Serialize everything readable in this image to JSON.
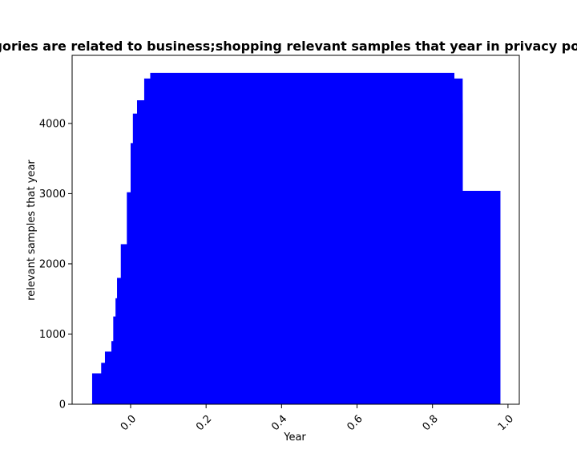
{
  "chart_data": {
    "type": "bar",
    "title": "Categories are related to business;shopping relevant samples that year in privacy policies",
    "xlabel": "Year",
    "ylabel": "relevant samples that year",
    "xlim": [
      -0.155,
      1.03
    ],
    "ylim": [
      0,
      4970
    ],
    "xticks": [
      0.0,
      0.2,
      0.4,
      0.6,
      0.8,
      1.0
    ],
    "xtick_labels": [
      "0.0",
      "0.2",
      "0.4",
      "0.6",
      "0.8",
      "1.0"
    ],
    "yticks": [
      0,
      1000,
      2000,
      3000,
      4000
    ],
    "ytick_labels": [
      "0",
      "1000",
      "2000",
      "3000",
      "4000"
    ],
    "grid": false,
    "color": "#0000ff",
    "bars": [
      {
        "x0": -0.102,
        "x1": 0.88,
        "value": 440
      },
      {
        "x0": -0.078,
        "x1": 0.88,
        "value": 590
      },
      {
        "x0": -0.068,
        "x1": 0.88,
        "value": 750
      },
      {
        "x0": -0.051,
        "x1": 0.88,
        "value": 900
      },
      {
        "x0": -0.046,
        "x1": 0.88,
        "value": 1250
      },
      {
        "x0": -0.04,
        "x1": 0.88,
        "value": 1510
      },
      {
        "x0": -0.036,
        "x1": 0.88,
        "value": 1800
      },
      {
        "x0": -0.026,
        "x1": 0.88,
        "value": 2280
      },
      {
        "x0": -0.01,
        "x1": 0.88,
        "value": 3020
      },
      {
        "x0": 0.0,
        "x1": 0.88,
        "value": 3720
      },
      {
        "x0": 0.006,
        "x1": 0.88,
        "value": 4140
      },
      {
        "x0": 0.017,
        "x1": 0.88,
        "value": 4330
      },
      {
        "x0": 0.036,
        "x1": 0.88,
        "value": 4640
      },
      {
        "x0": 0.052,
        "x1": 0.858,
        "value": 4720
      },
      {
        "x0": 0.858,
        "x1": 0.88,
        "value": 3960
      },
      {
        "x0": 0.88,
        "x1": 0.98,
        "value": 3040
      }
    ]
  }
}
